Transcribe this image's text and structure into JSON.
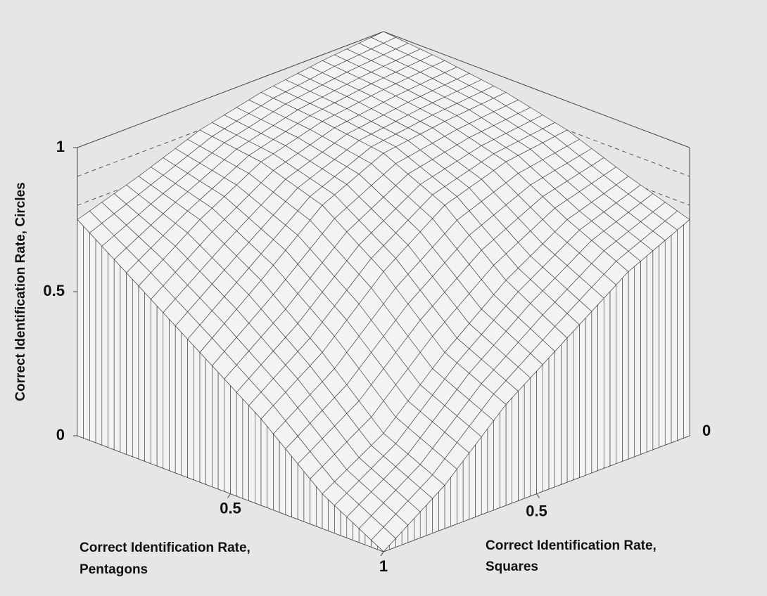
{
  "chart_data": {
    "type": "surface",
    "xlabel": [
      "Correct Identification Rate,",
      "Pentagons"
    ],
    "ylabel": [
      "Correct Identification Rate,",
      "Squares"
    ],
    "zlabel": "Correct Identification Rate, Circles",
    "x": [
      0,
      0.2,
      0.4,
      0.6,
      0.8,
      1
    ],
    "y": [
      0,
      0.2,
      0.4,
      0.6,
      0.8,
      1
    ],
    "z": [
      [
        1.0,
        0.98,
        0.95,
        0.9,
        0.82,
        0.75
      ],
      [
        0.98,
        0.96,
        0.93,
        0.87,
        0.75,
        0.6
      ],
      [
        0.95,
        0.93,
        0.9,
        0.8,
        0.62,
        0.45
      ],
      [
        0.9,
        0.87,
        0.8,
        0.65,
        0.45,
        0.3
      ],
      [
        0.82,
        0.75,
        0.62,
        0.45,
        0.25,
        0.12
      ],
      [
        0.75,
        0.65,
        0.5,
        0.35,
        0.15,
        0.0
      ]
    ],
    "xlim": [
      0,
      1
    ],
    "ylim": [
      0,
      1
    ],
    "zlim": [
      0,
      1
    ],
    "xticks": [
      0.5,
      1
    ],
    "yticks": [
      0.5
    ],
    "zticks": [
      0,
      0.5,
      1
    ],
    "z_gridlines": [
      0.1,
      0.2,
      0.3,
      0.4,
      0.5,
      0.6,
      0.7,
      0.8,
      0.9
    ],
    "color": "#f3f3f1"
  }
}
